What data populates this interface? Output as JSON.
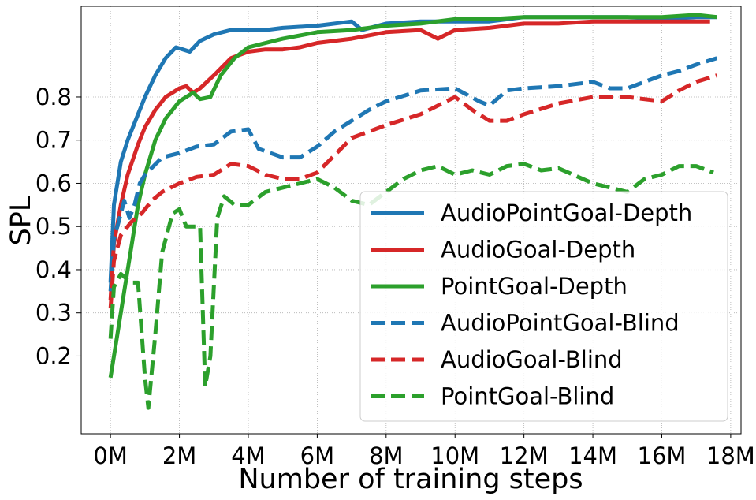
{
  "chart_data": {
    "type": "line",
    "xlabel": "Number of training steps",
    "ylabel": "SPL",
    "xlim": [
      -0.85,
      18.3
    ],
    "ylim": [
      0.02,
      1.01
    ],
    "xticks": [
      0,
      2,
      4,
      6,
      8,
      10,
      12,
      14,
      16,
      18
    ],
    "xtick_labels": [
      "0M",
      "2M",
      "4M",
      "6M",
      "8M",
      "10M",
      "12M",
      "14M",
      "16M",
      "18M"
    ],
    "yticks": [
      0.2,
      0.3,
      0.4,
      0.5,
      0.6,
      0.7,
      0.8
    ],
    "ytick_labels": [
      "0.2",
      "0.3",
      "0.4",
      "0.5",
      "0.6",
      "0.7",
      "0.8"
    ],
    "grid": true,
    "legend_position": "lower-right",
    "series": [
      {
        "name": "AudioPointGoal-Depth",
        "color": "#1f77b4",
        "dash": "solid",
        "points": [
          [
            0,
            0.37
          ],
          [
            0.1,
            0.55
          ],
          [
            0.3,
            0.65
          ],
          [
            0.5,
            0.7
          ],
          [
            0.8,
            0.76
          ],
          [
            1.0,
            0.8
          ],
          [
            1.3,
            0.85
          ],
          [
            1.6,
            0.89
          ],
          [
            1.9,
            0.915
          ],
          [
            2.1,
            0.91
          ],
          [
            2.3,
            0.905
          ],
          [
            2.6,
            0.93
          ],
          [
            3.0,
            0.945
          ],
          [
            3.5,
            0.955
          ],
          [
            4.0,
            0.955
          ],
          [
            4.5,
            0.955
          ],
          [
            5.0,
            0.96
          ],
          [
            6.0,
            0.965
          ],
          [
            7.0,
            0.975
          ],
          [
            7.3,
            0.955
          ],
          [
            8.0,
            0.97
          ],
          [
            9.0,
            0.975
          ],
          [
            10.0,
            0.975
          ],
          [
            11.0,
            0.975
          ],
          [
            12.0,
            0.985
          ],
          [
            13.0,
            0.985
          ],
          [
            14.0,
            0.985
          ],
          [
            15.0,
            0.985
          ],
          [
            16.0,
            0.98
          ],
          [
            17.0,
            0.985
          ],
          [
            17.6,
            0.985
          ]
        ]
      },
      {
        "name": "AudioGoal-Depth",
        "color": "#d62728",
        "dash": "solid",
        "points": [
          [
            0,
            0.33
          ],
          [
            0.1,
            0.46
          ],
          [
            0.3,
            0.55
          ],
          [
            0.5,
            0.62
          ],
          [
            0.8,
            0.69
          ],
          [
            1.0,
            0.73
          ],
          [
            1.3,
            0.77
          ],
          [
            1.6,
            0.8
          ],
          [
            2.0,
            0.82
          ],
          [
            2.2,
            0.825
          ],
          [
            2.4,
            0.81
          ],
          [
            2.6,
            0.82
          ],
          [
            3.0,
            0.85
          ],
          [
            3.5,
            0.89
          ],
          [
            4.0,
            0.905
          ],
          [
            4.5,
            0.91
          ],
          [
            5.0,
            0.91
          ],
          [
            5.5,
            0.915
          ],
          [
            6.0,
            0.925
          ],
          [
            7.0,
            0.935
          ],
          [
            8.0,
            0.95
          ],
          [
            9.0,
            0.955
          ],
          [
            9.5,
            0.935
          ],
          [
            10.0,
            0.955
          ],
          [
            11.0,
            0.96
          ],
          [
            12.0,
            0.97
          ],
          [
            13.0,
            0.97
          ],
          [
            14.0,
            0.975
          ],
          [
            15.0,
            0.975
          ],
          [
            16.0,
            0.975
          ],
          [
            17.0,
            0.975
          ],
          [
            17.4,
            0.975
          ]
        ]
      },
      {
        "name": "PointGoal-Depth",
        "color": "#2ca02c",
        "dash": "solid",
        "points": [
          [
            0,
            0.15
          ],
          [
            0.2,
            0.25
          ],
          [
            0.4,
            0.35
          ],
          [
            0.6,
            0.45
          ],
          [
            0.8,
            0.55
          ],
          [
            1.0,
            0.62
          ],
          [
            1.3,
            0.7
          ],
          [
            1.6,
            0.75
          ],
          [
            2.0,
            0.79
          ],
          [
            2.4,
            0.81
          ],
          [
            2.6,
            0.795
          ],
          [
            2.9,
            0.8
          ],
          [
            3.2,
            0.85
          ],
          [
            3.6,
            0.89
          ],
          [
            4.0,
            0.915
          ],
          [
            5.0,
            0.935
          ],
          [
            6.0,
            0.95
          ],
          [
            7.0,
            0.955
          ],
          [
            8.0,
            0.965
          ],
          [
            9.0,
            0.97
          ],
          [
            10.0,
            0.98
          ],
          [
            11.0,
            0.98
          ],
          [
            12.0,
            0.985
          ],
          [
            13.0,
            0.985
          ],
          [
            14.0,
            0.985
          ],
          [
            15.0,
            0.985
          ],
          [
            16.0,
            0.985
          ],
          [
            17.0,
            0.99
          ],
          [
            17.6,
            0.985
          ]
        ]
      },
      {
        "name": "AudioPointGoal-Blind",
        "color": "#1f77b4",
        "dash": "dashed",
        "points": [
          [
            0,
            0.35
          ],
          [
            0.1,
            0.47
          ],
          [
            0.3,
            0.53
          ],
          [
            0.4,
            0.56
          ],
          [
            0.55,
            0.52
          ],
          [
            0.7,
            0.55
          ],
          [
            0.85,
            0.6
          ],
          [
            1.0,
            0.62
          ],
          [
            1.5,
            0.66
          ],
          [
            2.0,
            0.67
          ],
          [
            2.5,
            0.685
          ],
          [
            3.0,
            0.69
          ],
          [
            3.5,
            0.72
          ],
          [
            4.0,
            0.725
          ],
          [
            4.3,
            0.68
          ],
          [
            5.0,
            0.66
          ],
          [
            5.5,
            0.66
          ],
          [
            6.0,
            0.685
          ],
          [
            6.5,
            0.72
          ],
          [
            7.0,
            0.745
          ],
          [
            7.5,
            0.77
          ],
          [
            8.0,
            0.79
          ],
          [
            9.0,
            0.815
          ],
          [
            10.0,
            0.82
          ],
          [
            10.7,
            0.79
          ],
          [
            11.0,
            0.78
          ],
          [
            11.5,
            0.815
          ],
          [
            12.0,
            0.82
          ],
          [
            13.0,
            0.825
          ],
          [
            14.0,
            0.835
          ],
          [
            14.5,
            0.82
          ],
          [
            15.0,
            0.82
          ],
          [
            16.0,
            0.85
          ],
          [
            16.5,
            0.86
          ],
          [
            17.0,
            0.875
          ],
          [
            17.6,
            0.89
          ]
        ]
      },
      {
        "name": "AudioGoal-Blind",
        "color": "#d62728",
        "dash": "dashed",
        "points": [
          [
            0,
            0.31
          ],
          [
            0.1,
            0.42
          ],
          [
            0.3,
            0.48
          ],
          [
            0.6,
            0.51
          ],
          [
            0.9,
            0.53
          ],
          [
            1.2,
            0.56
          ],
          [
            1.5,
            0.58
          ],
          [
            2.0,
            0.6
          ],
          [
            2.5,
            0.615
          ],
          [
            3.0,
            0.62
          ],
          [
            3.5,
            0.645
          ],
          [
            4.0,
            0.64
          ],
          [
            4.5,
            0.62
          ],
          [
            5.0,
            0.61
          ],
          [
            5.5,
            0.61
          ],
          [
            6.0,
            0.625
          ],
          [
            6.5,
            0.665
          ],
          [
            7.0,
            0.705
          ],
          [
            8.0,
            0.735
          ],
          [
            9.0,
            0.76
          ],
          [
            10.0,
            0.8
          ],
          [
            10.5,
            0.77
          ],
          [
            11.0,
            0.745
          ],
          [
            11.5,
            0.745
          ],
          [
            12.0,
            0.76
          ],
          [
            13.0,
            0.785
          ],
          [
            14.0,
            0.8
          ],
          [
            15.0,
            0.8
          ],
          [
            16.0,
            0.79
          ],
          [
            16.5,
            0.815
          ],
          [
            17.0,
            0.835
          ],
          [
            17.6,
            0.85
          ]
        ]
      },
      {
        "name": "PointGoal-Blind",
        "color": "#2ca02c",
        "dash": "dashed",
        "points": [
          [
            0,
            0.24
          ],
          [
            0.1,
            0.36
          ],
          [
            0.3,
            0.39
          ],
          [
            0.6,
            0.37
          ],
          [
            0.8,
            0.37
          ],
          [
            1.0,
            0.15
          ],
          [
            1.1,
            0.08
          ],
          [
            1.3,
            0.25
          ],
          [
            1.5,
            0.44
          ],
          [
            1.8,
            0.53
          ],
          [
            2.0,
            0.54
          ],
          [
            2.2,
            0.5
          ],
          [
            2.5,
            0.5
          ],
          [
            2.6,
            0.5
          ],
          [
            2.75,
            0.13
          ],
          [
            2.9,
            0.2
          ],
          [
            3.1,
            0.52
          ],
          [
            3.3,
            0.57
          ],
          [
            3.6,
            0.55
          ],
          [
            4.0,
            0.55
          ],
          [
            4.5,
            0.58
          ],
          [
            5.0,
            0.59
          ],
          [
            5.5,
            0.6
          ],
          [
            6.0,
            0.61
          ],
          [
            6.5,
            0.59
          ],
          [
            7.0,
            0.56
          ],
          [
            7.5,
            0.55
          ],
          [
            8.0,
            0.58
          ],
          [
            8.5,
            0.61
          ],
          [
            9.0,
            0.63
          ],
          [
            9.5,
            0.64
          ],
          [
            10.0,
            0.62
          ],
          [
            10.5,
            0.63
          ],
          [
            11.0,
            0.62
          ],
          [
            11.5,
            0.64
          ],
          [
            12.0,
            0.645
          ],
          [
            12.5,
            0.63
          ],
          [
            13.0,
            0.635
          ],
          [
            14.0,
            0.6
          ],
          [
            14.5,
            0.59
          ],
          [
            15.0,
            0.58
          ],
          [
            15.5,
            0.61
          ],
          [
            16.0,
            0.62
          ],
          [
            16.5,
            0.64
          ],
          [
            17.0,
            0.64
          ],
          [
            17.5,
            0.625
          ]
        ]
      }
    ]
  }
}
